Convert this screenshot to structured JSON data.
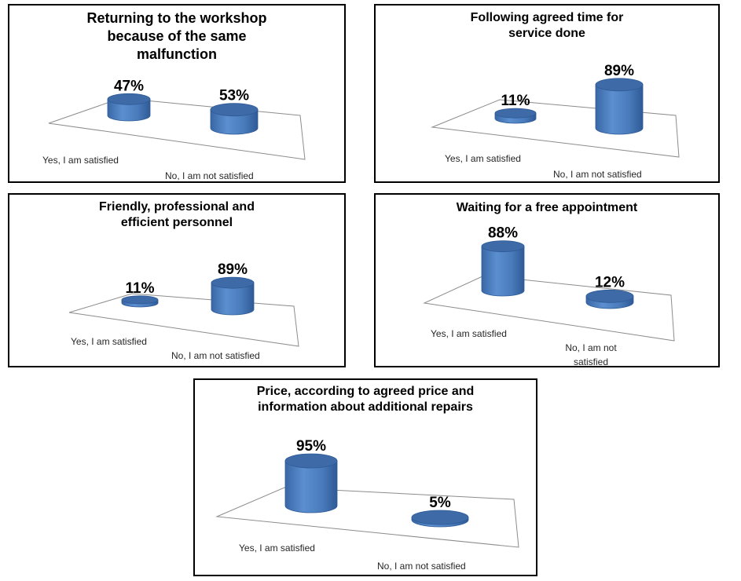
{
  "chart_data": [
    {
      "type": "bar",
      "style": "3d-cylinder",
      "title": "Returning to the workshop because of the same malfunction",
      "categories": [
        "Yes, I am satisfied",
        "No, I am not satisfied"
      ],
      "values": [
        47,
        53
      ],
      "value_labels": [
        "47%",
        "53%"
      ],
      "unit": "%",
      "ylim": [
        0,
        100
      ]
    },
    {
      "type": "bar",
      "style": "3d-cylinder",
      "title": "Following agreed time for service done",
      "categories": [
        "Yes, I am satisfied",
        "No, I am not satisfied"
      ],
      "values": [
        11,
        89
      ],
      "value_labels": [
        "11%",
        "89%"
      ],
      "unit": "%",
      "ylim": [
        0,
        100
      ]
    },
    {
      "type": "bar",
      "style": "3d-cylinder",
      "title": "Friendly, professional and efficient personnel",
      "categories": [
        "Yes, I am satisfied",
        "No, I am not satisfied"
      ],
      "values": [
        11,
        89
      ],
      "value_labels": [
        "11%",
        "89%"
      ],
      "unit": "%",
      "ylim": [
        0,
        100
      ]
    },
    {
      "type": "bar",
      "style": "3d-cylinder",
      "title": "Waiting for a free appointment",
      "categories": [
        "Yes, I am satisfied",
        "No, I am not satisfied"
      ],
      "values": [
        88,
        12
      ],
      "value_labels": [
        "88%",
        "12%"
      ],
      "unit": "%",
      "ylim": [
        0,
        100
      ]
    },
    {
      "type": "bar",
      "style": "3d-cylinder",
      "title": "Price, according to agreed price and information about additional repairs",
      "categories": [
        "Yes, I am satisfied",
        "No, I am not satisfied"
      ],
      "values": [
        95,
        5
      ],
      "value_labels": [
        "95%",
        "5%"
      ],
      "unit": "%",
      "ylim": [
        0,
        100
      ]
    }
  ],
  "colors": {
    "bar_body": "#4f81bd",
    "bar_dark": "#2e5a96",
    "bar_top": "#3e6aa8",
    "floor_line": "#8c8c8c",
    "panel_border": "#000000"
  }
}
